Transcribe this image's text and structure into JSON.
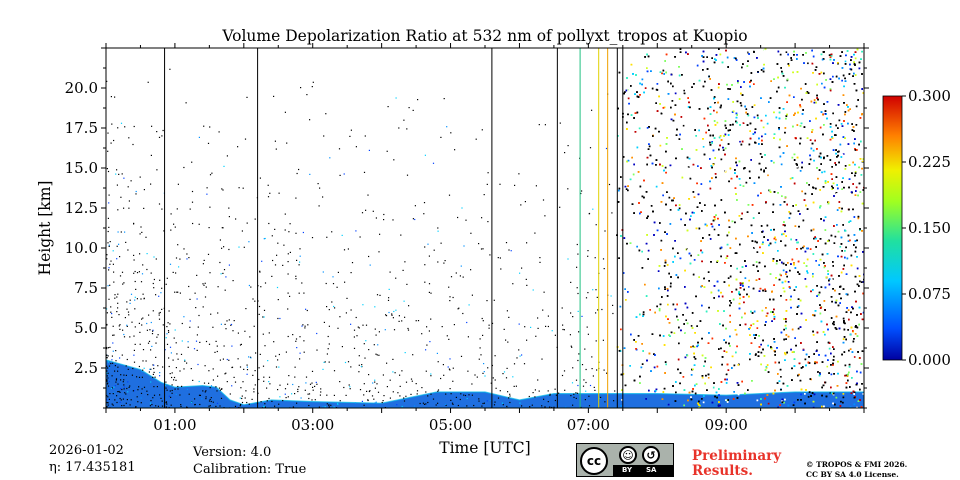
{
  "chart_data": {
    "type": "heatmap",
    "title": "Volume Depolarization Ratio at 532 nm of pollyxt_tropos at Kuopio",
    "xlabel": "Time [UTC]",
    "ylabel": "Height [km]",
    "xlim_hours": [
      0.0,
      11.0
    ],
    "ylim_km": [
      0.0,
      22.5
    ],
    "xticks": [
      {
        "value": 1,
        "label": "01:00"
      },
      {
        "value": 3,
        "label": "03:00"
      },
      {
        "value": 5,
        "label": "05:00"
      },
      {
        "value": 7,
        "label": "07:00"
      },
      {
        "value": 9,
        "label": "09:00"
      }
    ],
    "yticks": [
      {
        "value": 2.5,
        "label": "2.5"
      },
      {
        "value": 5.0,
        "label": "5.0"
      },
      {
        "value": 7.5,
        "label": "7.5"
      },
      {
        "value": 10.0,
        "label": "10.0"
      },
      {
        "value": 12.5,
        "label": "12.5"
      },
      {
        "value": 15.0,
        "label": "15.0"
      },
      {
        "value": 17.5,
        "label": "17.5"
      },
      {
        "value": 20.0,
        "label": "20.0"
      }
    ],
    "colorbar": {
      "min": 0.0,
      "max": 0.3,
      "ticks": [
        {
          "value": 0.0,
          "label": "0.000"
        },
        {
          "value": 0.075,
          "label": "0.075"
        },
        {
          "value": 0.15,
          "label": "0.150"
        },
        {
          "value": 0.225,
          "label": "0.225"
        },
        {
          "value": 0.3,
          "label": "0.300"
        }
      ],
      "colormap": "jet"
    },
    "missing_data_lines_hours": [
      0.85,
      2.2,
      5.6,
      6.55
    ],
    "low_layer_boundary_km": [
      [
        0.0,
        3.0
      ],
      [
        0.5,
        2.4
      ],
      [
        0.8,
        1.6
      ],
      [
        1.0,
        1.3
      ],
      [
        1.4,
        1.4
      ],
      [
        1.6,
        1.3
      ],
      [
        1.8,
        0.5
      ],
      [
        2.0,
        0.2
      ],
      [
        2.4,
        0.5
      ],
      [
        3.0,
        0.4
      ],
      [
        4.0,
        0.3
      ],
      [
        4.8,
        1.0
      ],
      [
        5.5,
        1.0
      ],
      [
        6.0,
        0.5
      ],
      [
        6.5,
        0.9
      ],
      [
        7.0,
        0.9
      ],
      [
        8.0,
        0.9
      ],
      [
        9.0,
        0.8
      ],
      [
        10.0,
        1.0
      ],
      [
        11.0,
        1.0
      ]
    ],
    "noise_onset_hours": 7.4
  },
  "info": {
    "date": "2026-01-02",
    "eta": "η: 17.435181",
    "version": "Version: 4.0",
    "calibration": "Calibration: True"
  },
  "footer": {
    "prelim_line1": "Preliminary",
    "prelim_line2": "Results.",
    "copyright_line1": "© TROPOS & FMI 2026.",
    "copyright_line2": "CC BY SA 4.0 License.",
    "license_by": "BY",
    "license_sa": "SA",
    "license_cc": "cc"
  }
}
